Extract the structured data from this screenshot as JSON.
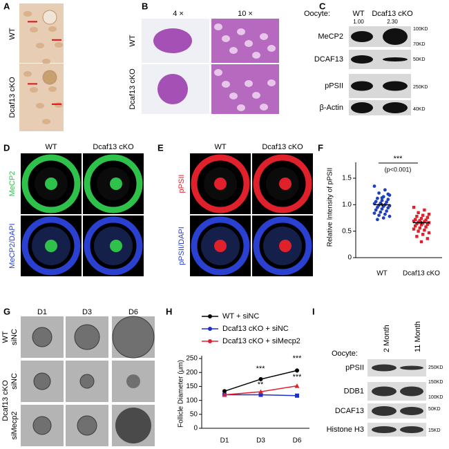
{
  "panel_labels": [
    "A",
    "B",
    "C",
    "D",
    "E",
    "F",
    "G",
    "H",
    "I"
  ],
  "panel_a": {
    "rows": [
      "WT",
      "Dcaf13 cKO"
    ]
  },
  "panel_b": {
    "columns": [
      "4 ×",
      "10 ×"
    ],
    "rows": [
      "WT",
      "Dcaf13 cKO"
    ]
  },
  "panel_c": {
    "lane_title": "Oocyte:",
    "lanes": [
      "WT",
      "Dcaf13 cKO"
    ],
    "quantification": [
      "1.00",
      "2.30"
    ],
    "blots": [
      "MeCP2",
      "DCAF13",
      "pPSII",
      "β-Actin"
    ],
    "markers": [
      "100KD",
      "70KD",
      "50KD",
      "250KD",
      "40KD"
    ]
  },
  "panel_d": {
    "columns": [
      "WT",
      "Dcaf13 cKO"
    ],
    "rows": [
      "MeCP2",
      "MeCP2/DAPI"
    ]
  },
  "panel_e": {
    "columns": [
      "WT",
      "Dcaf13 cKO"
    ],
    "rows": [
      "pPSII",
      "pPSII/DAPI"
    ]
  },
  "panel_f": {
    "type": "scatter",
    "y_label": "Relative Intensity of pPSII",
    "categories": [
      "WT",
      "Dcaf13 cKO"
    ],
    "groups": [
      {
        "color": "#1f3fbf",
        "mean": 1.0,
        "error": 0.03,
        "values": [
          1.35,
          1.28,
          1.22,
          1.18,
          1.15,
          1.12,
          1.1,
          1.08,
          1.06,
          1.05,
          1.03,
          1.02,
          1.0,
          0.99,
          0.98,
          0.97,
          0.95,
          0.94,
          0.92,
          0.9,
          0.88,
          0.86,
          0.84,
          0.82,
          0.8,
          0.78,
          0.75,
          0.72,
          1.2,
          1.13
        ]
      },
      {
        "color": "#e0202a",
        "mean": 0.66,
        "error": 0.03,
        "values": [
          0.95,
          0.9,
          0.85,
          0.82,
          0.8,
          0.78,
          0.76,
          0.74,
          0.72,
          0.71,
          0.7,
          0.69,
          0.68,
          0.67,
          0.66,
          0.65,
          0.64,
          0.63,
          0.62,
          0.6,
          0.58,
          0.56,
          0.54,
          0.52,
          0.5,
          0.47,
          0.44,
          0.4,
          0.36,
          0.3
        ]
      }
    ],
    "ylim": [
      0,
      1.8
    ],
    "yticks": [
      0,
      0.5,
      {
        "value": 1,
        "label": "1.0"
      },
      1.5
    ],
    "significance": "***",
    "p_value": "(p<0.001)"
  },
  "panel_g": {
    "columns": [
      "D1",
      "D3",
      "D6"
    ],
    "groups": [
      "WT",
      "Dcaf13 cKO"
    ],
    "rows": [
      "siNC",
      "siNC",
      "siMecp2"
    ]
  },
  "panel_h": {
    "type": "line",
    "y_label": "Follicle Diameter (μm)",
    "categories": [
      "D1",
      "D3",
      "D6"
    ],
    "series": [
      {
        "name": "WT + siNC",
        "color": "#000000",
        "values": [
          133,
          176,
          207
        ],
        "errors": [
          3,
          7,
          8
        ]
      },
      {
        "name": "Dcaf13 cKO + siNC",
        "color": "#1a2fd0",
        "values": [
          120,
          120,
          117
        ],
        "errors": [
          2,
          3,
          3
        ]
      },
      {
        "name": "Dcaf13 cKO + siMecp2",
        "color": "#e0202a",
        "values": [
          120,
          131,
          152
        ],
        "errors": [
          2,
          5,
          7
        ]
      }
    ],
    "ylim": [
      0,
      260
    ],
    "yticks": [
      0,
      50,
      100,
      150,
      200,
      250
    ],
    "annotations": [
      "***",
      "**",
      "***",
      "***"
    ]
  },
  "panel_i": {
    "lane_title": "Oocyte:",
    "lanes": [
      "2 Month",
      "11 Month"
    ],
    "blots": [
      "pPSII",
      "DDB1",
      "DCAF13",
      "Histone H3"
    ],
    "markers": [
      "250KD",
      "150KD",
      "100KD",
      "50KD",
      "15KD"
    ]
  }
}
